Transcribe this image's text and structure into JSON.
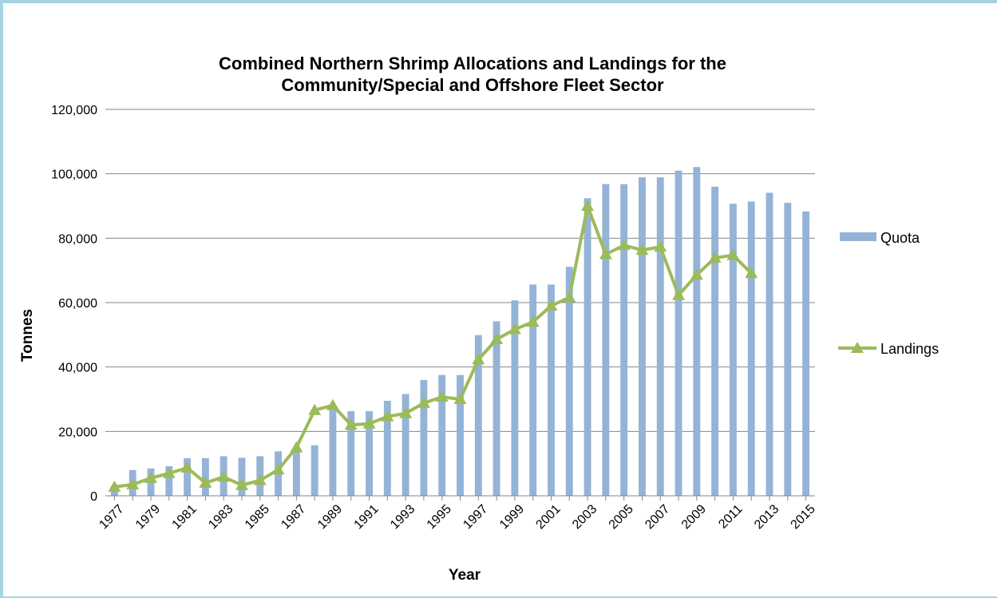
{
  "chart_data": {
    "type": "bar",
    "title": "Combined Northern Shrimp Allocations and Landings for the Community/Special and Offshore Fleet Sector",
    "title_lines": [
      "Combined Northern Shrimp Allocations and Landings for the",
      "Community/Special and Offshore Fleet Sector"
    ],
    "xlabel": "Year",
    "ylabel": "Tonnes",
    "ylim": [
      0,
      120000
    ],
    "yticks": [
      0,
      20000,
      40000,
      60000,
      80000,
      100000,
      120000
    ],
    "ytick_labels": [
      "0",
      "20,000",
      "40,000",
      "60,000",
      "80,000",
      "100,000",
      "120,000"
    ],
    "grid": "horizontal",
    "legend_position": "right",
    "categories": [
      "1977",
      "1978",
      "1979",
      "1980",
      "1981",
      "1982",
      "1983",
      "1984",
      "1985",
      "1986",
      "1987",
      "1988",
      "1989",
      "1990",
      "1991",
      "1992",
      "1993",
      "1994",
      "1995",
      "1996",
      "1997",
      "1998",
      "1999",
      "2000",
      "2001",
      "2002",
      "2003",
      "2004",
      "2005",
      "2006",
      "2007",
      "2008",
      "2009",
      "2010",
      "2011",
      "2012",
      "2013",
      "2014",
      "2015"
    ],
    "xtick_labels": [
      "1977",
      "1979",
      "1981",
      "1983",
      "1985",
      "1987",
      "1989",
      "1991",
      "1993",
      "1995",
      "1997",
      "1999",
      "2001",
      "2003",
      "2005",
      "2007",
      "2009",
      "2011",
      "2013",
      "2015"
    ],
    "series": [
      {
        "name": "Quota",
        "type": "bar",
        "color": "#95b3d7",
        "values": [
          3000,
          8000,
          8500,
          9200,
          11700,
          11700,
          12300,
          11800,
          12300,
          13800,
          14800,
          15700,
          27600,
          26300,
          26300,
          29500,
          31600,
          36000,
          37500,
          37500,
          49900,
          54200,
          60700,
          65600,
          65600,
          71100,
          92400,
          96800,
          96800,
          98900,
          98900,
          101000,
          102100,
          96000,
          90700,
          91400,
          94100,
          91000,
          88300
        ]
      },
      {
        "name": "Landings",
        "type": "line",
        "color": "#9bbb59",
        "values": [
          2800,
          3500,
          5500,
          7000,
          8700,
          4000,
          5900,
          3300,
          4800,
          8100,
          15000,
          26600,
          28100,
          22000,
          22400,
          24600,
          25600,
          28800,
          30700,
          30000,
          42300,
          48600,
          51700,
          54000,
          59000,
          61600,
          90000,
          75000,
          77800,
          76300,
          77300,
          62300,
          68600,
          73900,
          74700,
          69100,
          null,
          null,
          null
        ]
      }
    ]
  }
}
